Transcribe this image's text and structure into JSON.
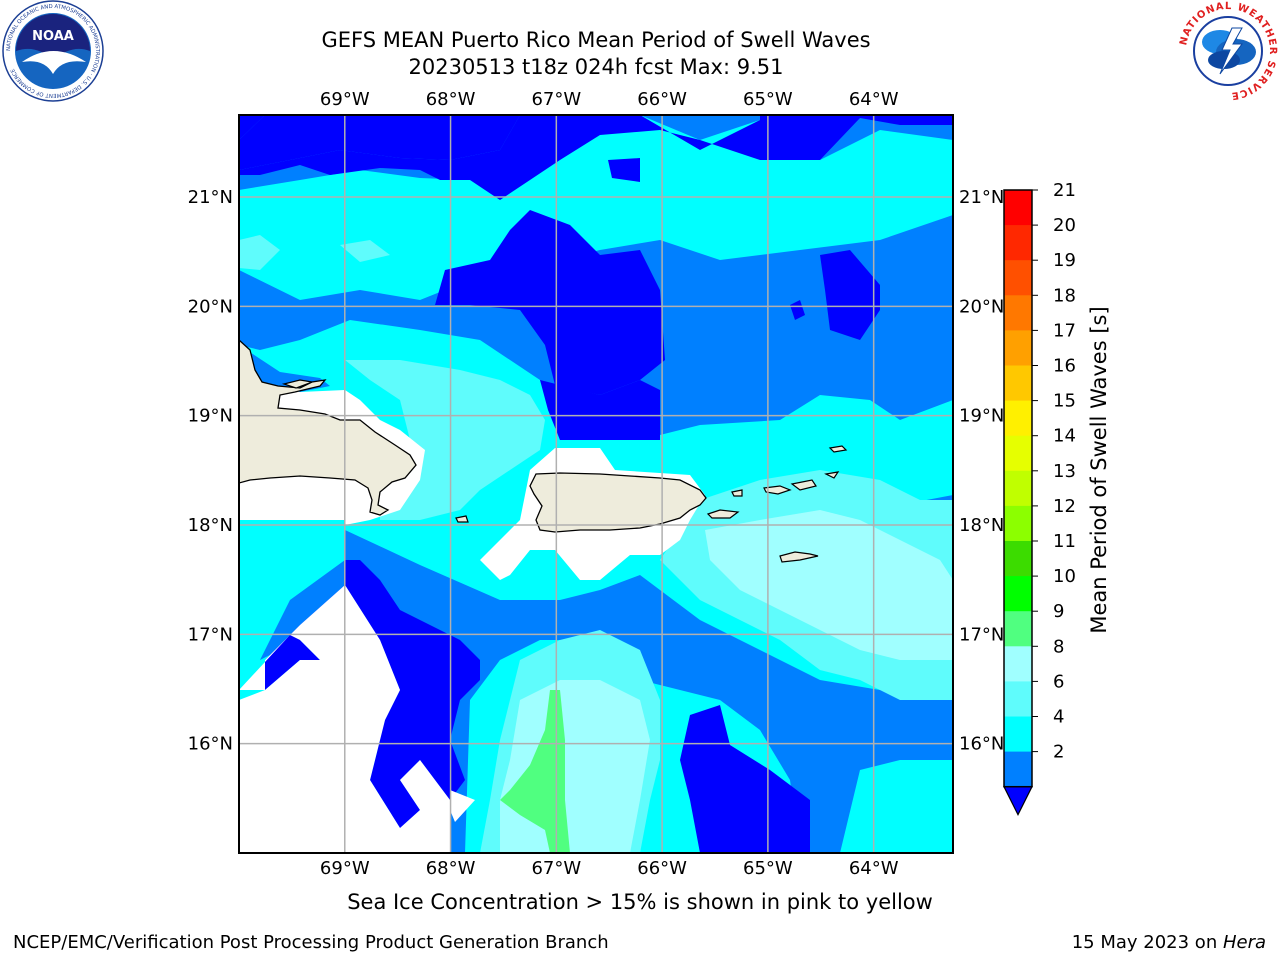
{
  "title": {
    "line1": "GEFS MEAN Puerto Rico Mean Period of Swell Waves",
    "line2": "20230513 t18z 024h fcst   Max: 9.51"
  },
  "map": {
    "lon_labels": [
      "69°W",
      "68°W",
      "67°W",
      "66°W",
      "65°W",
      "64°W"
    ],
    "lat_labels": [
      "21°N",
      "20°N",
      "19°N",
      "18°N",
      "17°N",
      "16°N"
    ],
    "lon_range": [
      -70.0,
      -63.25
    ],
    "lat_range": [
      15.0,
      21.75
    ],
    "colors": {
      "land": "#eeecdc",
      "band_2_4": "#0080ff",
      "band_4_6": "#00ffff",
      "band_6_8": "#5ffcfc",
      "band_8_9": "#a0ffff",
      "band_9_10": "#50ff80",
      "below_2": "#0000ff",
      "grid": "#b0b0b0"
    }
  },
  "colorbar": {
    "label": "Mean Period of Swell Waves [s]",
    "ticks": [
      "21",
      "20",
      "19",
      "18",
      "17",
      "16",
      "15",
      "14",
      "13",
      "12",
      "11",
      "10",
      "9",
      "8",
      "6",
      "4",
      "2"
    ],
    "colors": [
      "#ff0000",
      "#ff2800",
      "#ff5000",
      "#ff7800",
      "#ffa000",
      "#ffc800",
      "#fff000",
      "#e6ff00",
      "#c0ff00",
      "#8cff00",
      "#3cdc00",
      "#00ff00",
      "#50ff80",
      "#a0ffff",
      "#5ffcfc",
      "#00ffff",
      "#0080ff"
    ],
    "extend_color": "#0000ff"
  },
  "note": "Sea Ice Concentration > 15% is shown in pink to yellow",
  "footer": {
    "left": "NCEP/EMC/Verification Post Processing Product Generation Branch",
    "date": "15 May 2023 on ",
    "host": "Hera"
  },
  "logos": {
    "noaa_text": "NOAA",
    "noaa_ring": "NATIONAL OCEANIC AND ATMOSPHERIC ADMINISTRATION · U.S. DEPARTMENT OF COMMERCE",
    "nws_ring": "NATIONAL WEATHER SERVICE"
  }
}
